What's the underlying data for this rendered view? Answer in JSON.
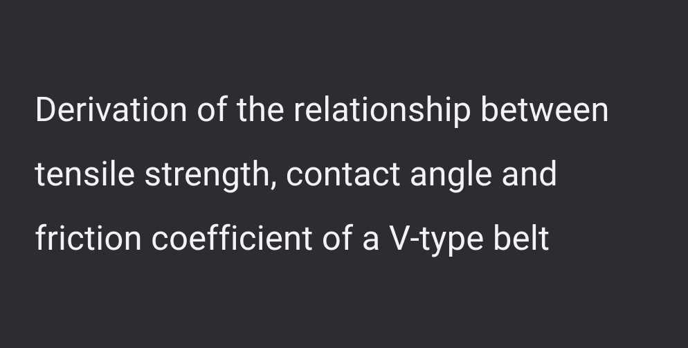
{
  "document": {
    "title": "Derivation of the relationship between tensile strength, contact angle and friction coefficient of a V-type belt",
    "background_color": "#2b2d31",
    "text_color": "#f2f3f5",
    "font_size": 49,
    "line_height": 1.9,
    "font_weight": 400
  }
}
